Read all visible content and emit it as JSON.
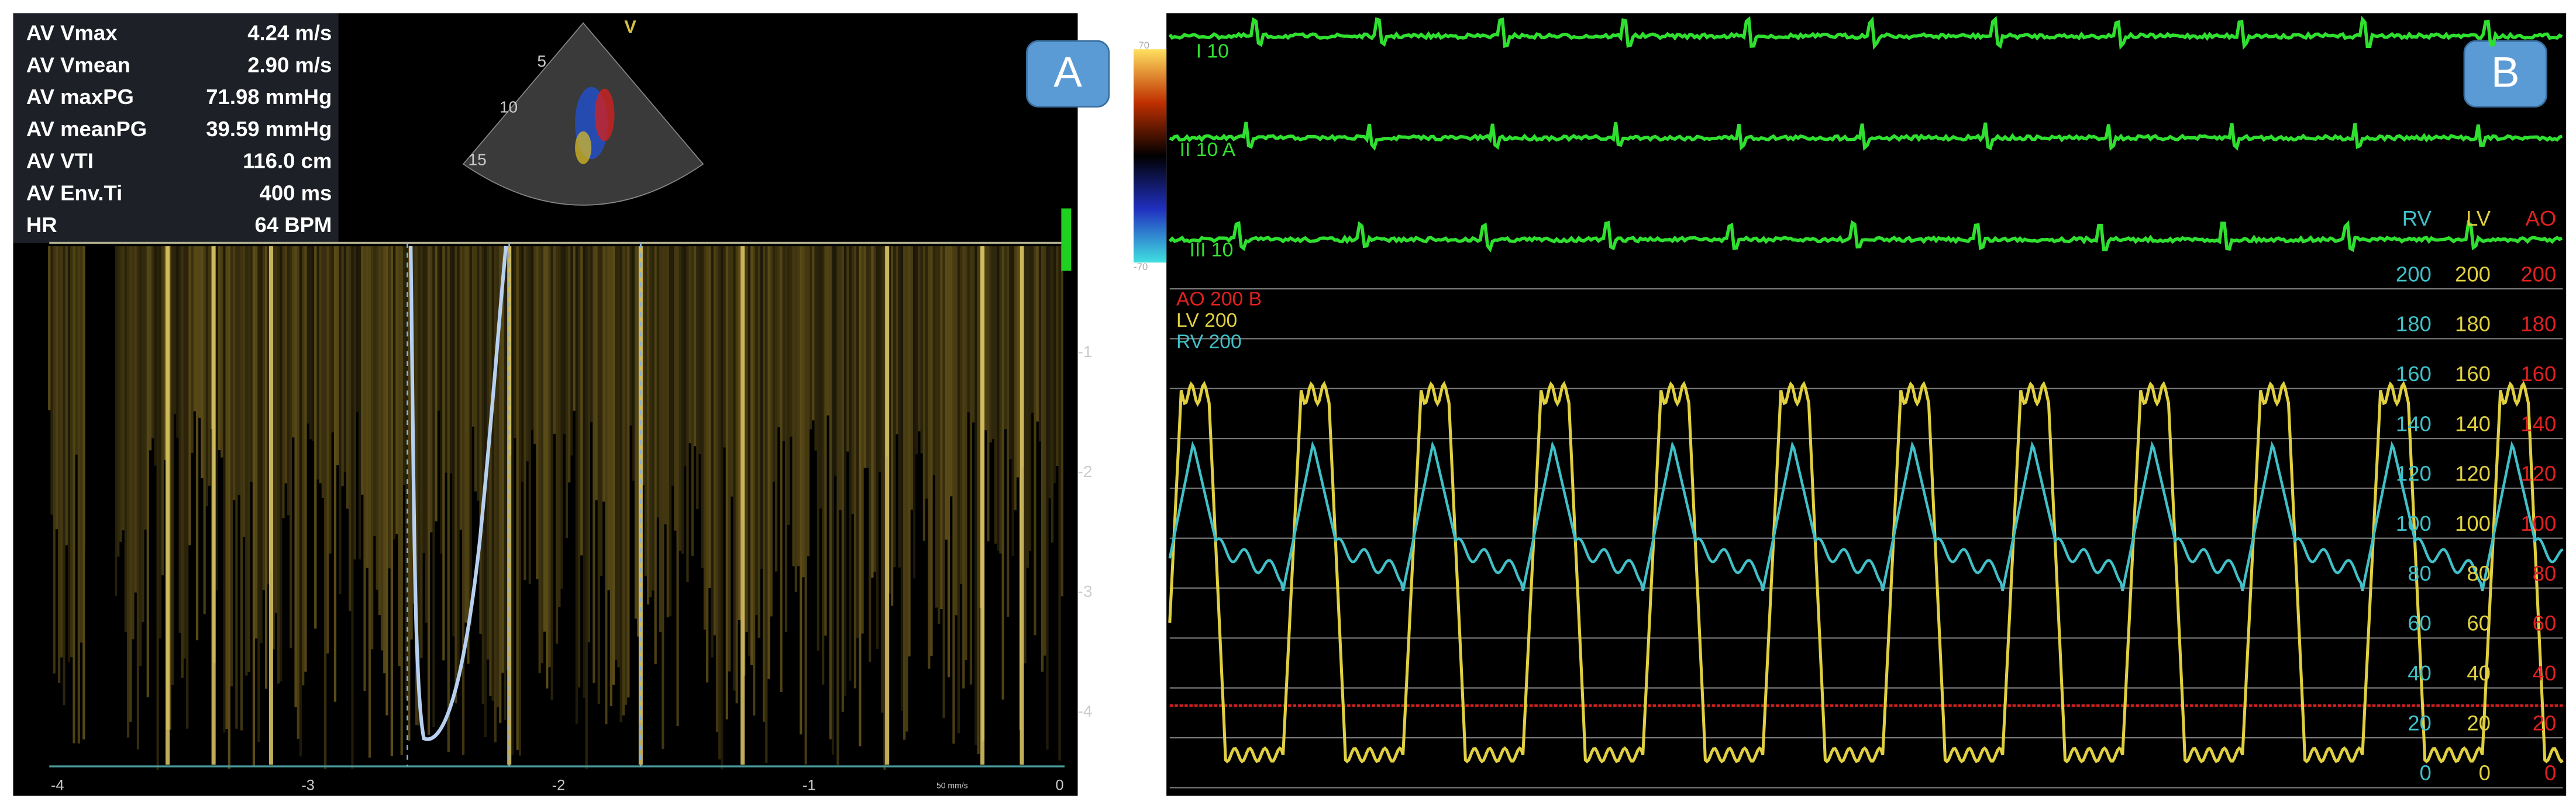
{
  "panel_a": {
    "label": "A",
    "measurements": [
      {
        "name": "AV Vmax",
        "value": "4.24 m/s"
      },
      {
        "name": "AV Vmean",
        "value": "2.90 m/s"
      },
      {
        "name": "AV maxPG",
        "value": "71.98 mmHg"
      },
      {
        "name": "AV meanPG",
        "value": "39.59 mmHg"
      },
      {
        "name": "AV VTI",
        "value": "116.0 cm"
      },
      {
        "name": "AV Env.Ti",
        "value": "400 ms"
      },
      {
        "name": "HR",
        "value": "64 BPM"
      }
    ],
    "sector_labels": [
      "5",
      "10",
      "15"
    ],
    "sector_marker": "V",
    "velocity_ticks": [
      "-1",
      "-2",
      "-3",
      "-4"
    ],
    "time_ticks": [
      "-4",
      "-3",
      "-2",
      "-1",
      "0"
    ],
    "sweep_speed": "50 mm/s"
  },
  "panel_b": {
    "label": "B",
    "ecg_leads": [
      "I 10",
      "II 10 A",
      "III 10"
    ],
    "color_bar": [
      "70",
      "-70"
    ],
    "scale_headers": [
      "RV",
      "LV",
      "AO"
    ],
    "scale_rows": [
      [
        "200",
        "200",
        "200"
      ],
      [
        "180",
        "180",
        "180"
      ],
      [
        "160",
        "160",
        "160"
      ],
      [
        "140",
        "140",
        "140"
      ],
      [
        "120",
        "120",
        "120"
      ],
      [
        "100",
        "100",
        "100"
      ],
      [
        "80",
        "80",
        "80"
      ],
      [
        "60",
        "60",
        "60"
      ],
      [
        "40",
        "40",
        "40"
      ],
      [
        "20",
        "20",
        "20"
      ],
      [
        "0",
        "0",
        "0"
      ]
    ],
    "channel_labels": [
      "AO 200 B",
      "LV 200",
      "RV 200"
    ]
  }
}
